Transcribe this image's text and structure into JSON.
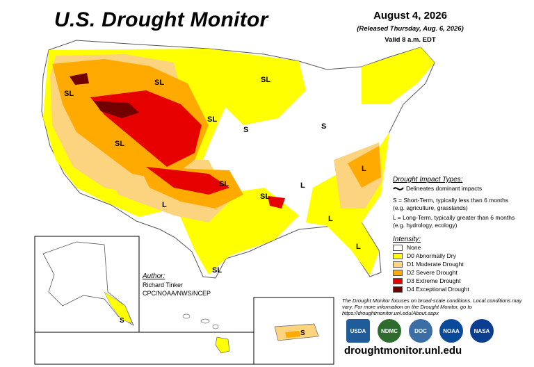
{
  "title": "U.S. Drought Monitor",
  "date": "August 4, 2026",
  "released": "(Released Thursday, Aug. 6, 2026)",
  "valid": "Valid 8 a.m. EDT",
  "impact": {
    "title": "Drought Impact Types:",
    "dominant": "Delineates dominant impacts",
    "short_term": "S = Short-Term, typically less than 6 months (e.g. agriculture, grasslands)",
    "long_term": "L = Long-Term, typically greater than 6 months (e.g. hydrology, ecology)"
  },
  "intensity": {
    "title": "Intensity:",
    "levels": [
      {
        "label": "None",
        "color": "#ffffff"
      },
      {
        "label": "D0 Abnormally Dry",
        "color": "#ffff00"
      },
      {
        "label": "D1 Moderate Drought",
        "color": "#fcd37f"
      },
      {
        "label": "D2 Severe Drought",
        "color": "#ffaa00"
      },
      {
        "label": "D3 Extreme Drought",
        "color": "#e60000"
      },
      {
        "label": "D4 Exceptional Drought",
        "color": "#730000"
      }
    ]
  },
  "author": {
    "label": "Author:",
    "name": "Richard Tinker",
    "org": "CPC/NOAA/NWS/NCEP"
  },
  "note": "The Drought Monitor focuses on broad-scale conditions. Local conditions may vary. For more information on the Drought Monitor, go to https://droughtmonitor.unl.edu/About.aspx",
  "website": "droughtmonitor.unl.edu",
  "map_labels": [
    "SL",
    "SL",
    "SL",
    "SL",
    "SL",
    "S",
    "S",
    "SL",
    "SL",
    "L",
    "L",
    "L",
    "L",
    "L",
    "SL",
    "S",
    "S"
  ],
  "logos": [
    {
      "name": "USDA",
      "color": "#1f5c99"
    },
    {
      "name": "NDMC",
      "color": "#2e6b2e"
    },
    {
      "name": "DOC",
      "color": "#3a6ea5"
    },
    {
      "name": "NOAA",
      "color": "#0a4a9a"
    },
    {
      "name": "NASA",
      "color": "#0b3d91"
    }
  ]
}
